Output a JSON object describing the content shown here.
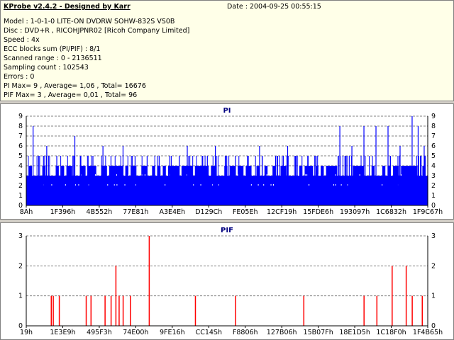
{
  "header": {
    "title": "KProbe v2.4.2 - Designed by Karr",
    "date": "Date : 2004-09-25 00:55:15",
    "lines": [
      "Model : 1-0-1-0 LITE-ON DVDRW SOHW-832S  VS0B",
      "Disc : DVD+R , RICOHJPNR02 [Ricoh Company Limited]",
      "Speed : 4x",
      "ECC blocks sum (PI/PIF) : 8/1",
      "Scanned range : 0 - 2136511",
      "Sampling count : 102543",
      "Errors : 0",
      "PI Max= 9 , Average= 1,06 , Total= 16676",
      "PIF Max= 3 , Average= 0,01 , Total= 96"
    ]
  },
  "chart_data": [
    {
      "type": "bar",
      "title": "PI",
      "ylim": [
        0,
        9
      ],
      "yticks": [
        0,
        1,
        2,
        3,
        4,
        5,
        6,
        7,
        8,
        9
      ],
      "xticks": [
        "8Ah",
        "1F396h",
        "4B552h",
        "77E81h",
        "A3E4Eh",
        "D129Ch",
        "FE05Eh",
        "12CF19h",
        "15FDE6h",
        "193097h",
        "1C6832h",
        "1F9C67h"
      ],
      "grid": true,
      "color": "#0000ff",
      "baseline": 3,
      "summary": {
        "max": 9,
        "average": 1.06,
        "total": 16676
      },
      "peaks": [
        {
          "x": 0.016,
          "y": 8
        },
        {
          "x": 0.03,
          "y": 5
        },
        {
          "x": 0.05,
          "y": 6
        },
        {
          "x": 0.075,
          "y": 5
        },
        {
          "x": 0.12,
          "y": 7
        },
        {
          "x": 0.135,
          "y": 5
        },
        {
          "x": 0.165,
          "y": 5
        },
        {
          "x": 0.19,
          "y": 6
        },
        {
          "x": 0.21,
          "y": 5
        },
        {
          "x": 0.24,
          "y": 6
        },
        {
          "x": 0.27,
          "y": 5
        },
        {
          "x": 0.3,
          "y": 5
        },
        {
          "x": 0.33,
          "y": 5
        },
        {
          "x": 0.36,
          "y": 5
        },
        {
          "x": 0.38,
          "y": 5
        },
        {
          "x": 0.4,
          "y": 6
        },
        {
          "x": 0.45,
          "y": 5
        },
        {
          "x": 0.47,
          "y": 6
        },
        {
          "x": 0.52,
          "y": 5
        },
        {
          "x": 0.55,
          "y": 5
        },
        {
          "x": 0.58,
          "y": 6
        },
        {
          "x": 0.62,
          "y": 5
        },
        {
          "x": 0.65,
          "y": 6
        },
        {
          "x": 0.7,
          "y": 5
        },
        {
          "x": 0.72,
          "y": 5
        },
        {
          "x": 0.78,
          "y": 8
        },
        {
          "x": 0.81,
          "y": 6
        },
        {
          "x": 0.84,
          "y": 8
        },
        {
          "x": 0.87,
          "y": 8
        },
        {
          "x": 0.9,
          "y": 8
        },
        {
          "x": 0.93,
          "y": 6
        },
        {
          "x": 0.96,
          "y": 9
        },
        {
          "x": 0.975,
          "y": 8
        },
        {
          "x": 0.99,
          "y": 6
        }
      ]
    },
    {
      "type": "bar",
      "title": "PIF",
      "ylim": [
        0,
        3
      ],
      "yticks": [
        0,
        1,
        2,
        3
      ],
      "xticks": [
        "19h",
        "1E3E9h",
        "495F3h",
        "74E00h",
        "9FE16h",
        "CC14Sh",
        "F8806h",
        "127B06h",
        "15B07Fh",
        "18E1D5h",
        "1C18F0h",
        "1F4B65h"
      ],
      "grid": true,
      "color": "#ff0000",
      "summary": {
        "max": 3,
        "average": 0.01,
        "total": 96
      },
      "spikes": [
        {
          "x": 0.061,
          "y": 1
        },
        {
          "x": 0.066,
          "y": 1
        },
        {
          "x": 0.081,
          "y": 1
        },
        {
          "x": 0.148,
          "y": 1
        },
        {
          "x": 0.16,
          "y": 1
        },
        {
          "x": 0.195,
          "y": 1
        },
        {
          "x": 0.21,
          "y": 1
        },
        {
          "x": 0.222,
          "y": 2
        },
        {
          "x": 0.23,
          "y": 1
        },
        {
          "x": 0.24,
          "y": 1
        },
        {
          "x": 0.258,
          "y": 1
        },
        {
          "x": 0.305,
          "y": 3
        },
        {
          "x": 0.42,
          "y": 1
        },
        {
          "x": 0.52,
          "y": 1
        },
        {
          "x": 0.69,
          "y": 1
        },
        {
          "x": 0.84,
          "y": 1
        },
        {
          "x": 0.872,
          "y": 1
        },
        {
          "x": 0.91,
          "y": 2
        },
        {
          "x": 0.945,
          "y": 2
        },
        {
          "x": 0.96,
          "y": 1
        },
        {
          "x": 0.985,
          "y": 1
        }
      ]
    }
  ]
}
